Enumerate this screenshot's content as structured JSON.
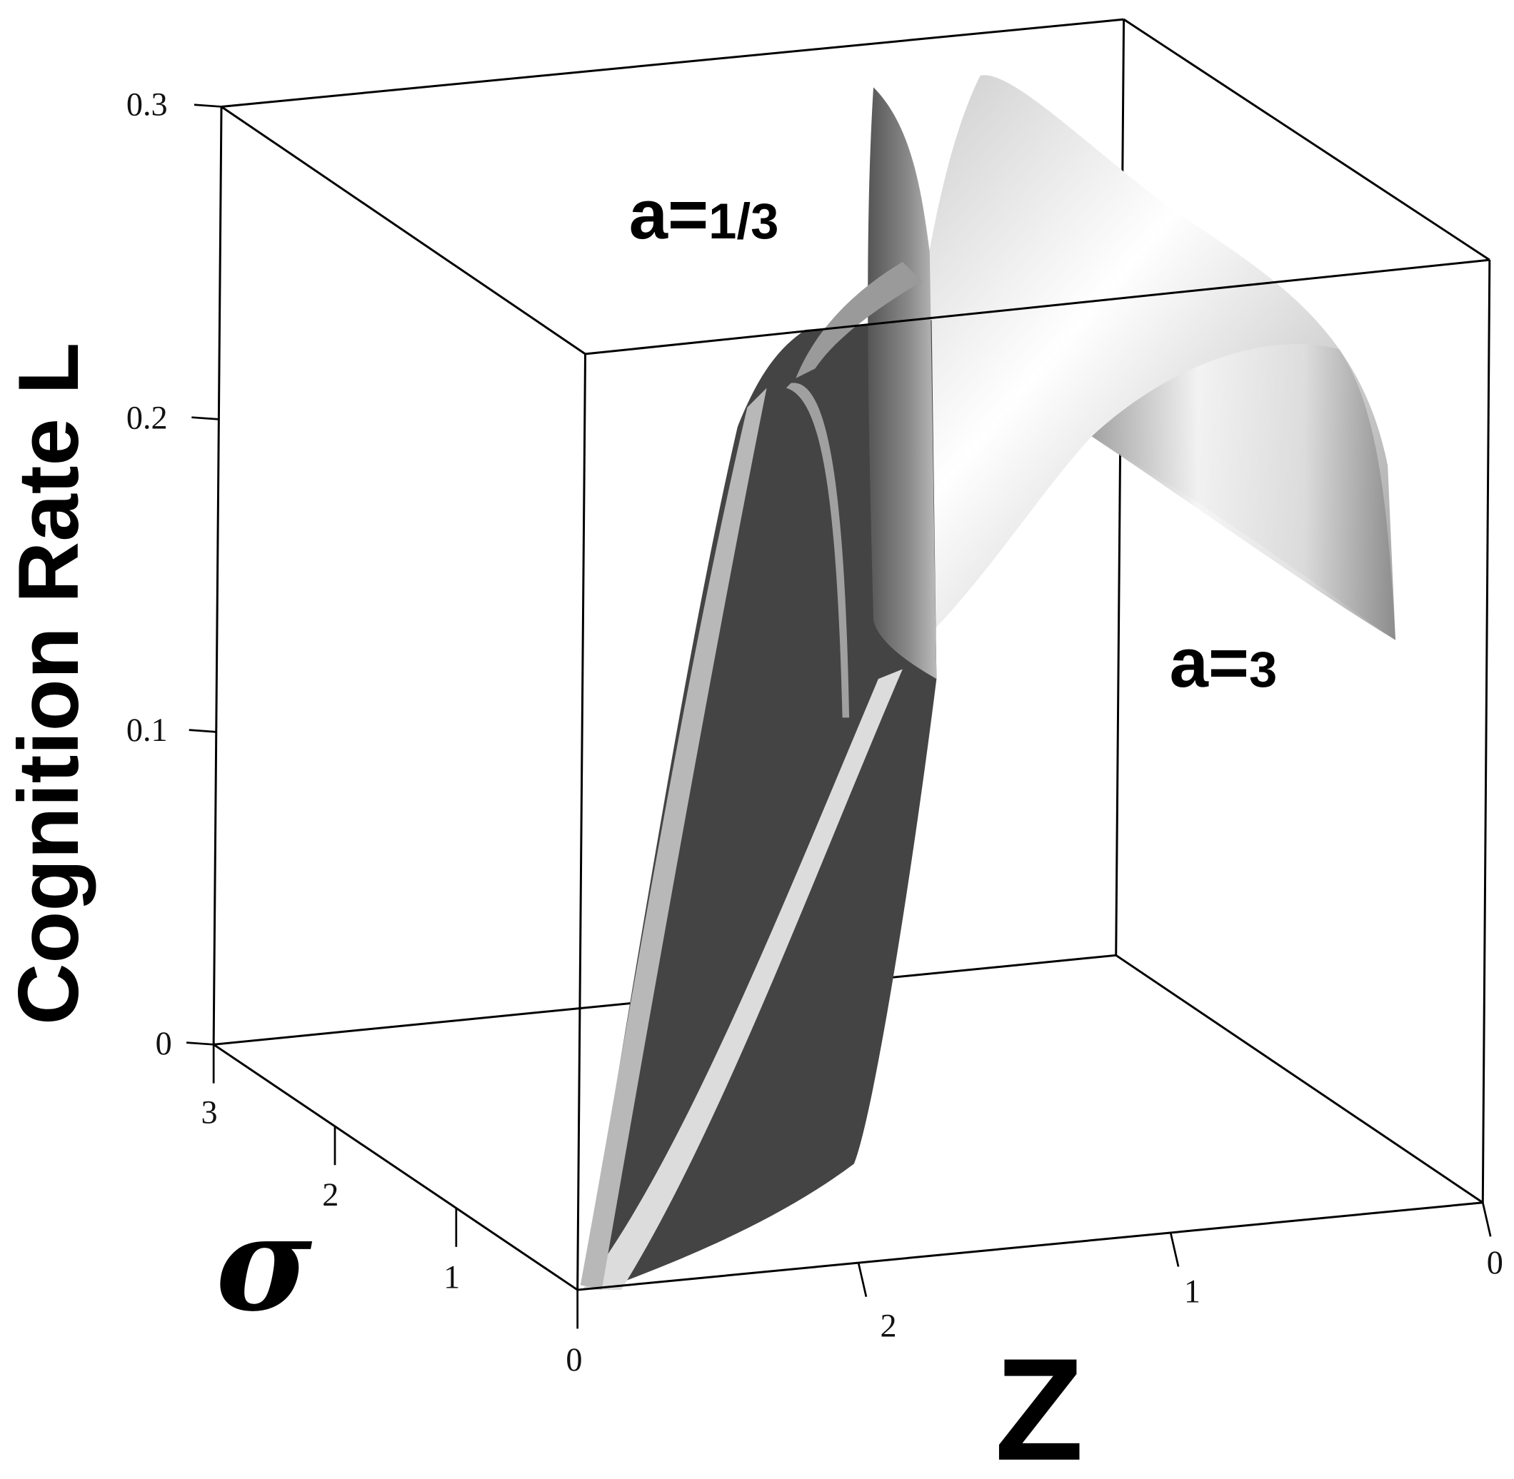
{
  "chart_data": {
    "type": "surface3d",
    "zlabel": "Cognition Rate L",
    "xlabel": "Z",
    "ylabel": "σ",
    "zlim": [
      0,
      0.3
    ],
    "xlim": [
      2.9,
      0
    ],
    "ylim": [
      0,
      3
    ],
    "z_ticks": [
      "0",
      "0.1",
      "0.2",
      "0.3"
    ],
    "z_tick_values": [
      0,
      0.1,
      0.2,
      0.3
    ],
    "sigma_ticks": [
      "3",
      "2",
      "1",
      "0"
    ],
    "sigma_tick_values": [
      3,
      2,
      1,
      0
    ],
    "x_ticks": [
      "2",
      "1",
      "0"
    ],
    "x_tick_values": [
      2,
      1,
      0
    ],
    "annotations": [
      {
        "prefix": "a=",
        "value": "1/3"
      },
      {
        "prefix": "a=",
        "value": "3"
      }
    ],
    "series": [
      {
        "name": "a=1/3",
        "color": "#444444"
      },
      {
        "name": "a=3",
        "color": "#e6e6e6"
      }
    ],
    "grid": false,
    "box": true
  }
}
